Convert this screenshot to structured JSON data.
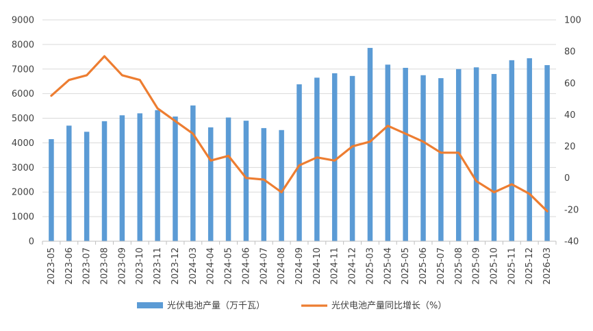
{
  "chart_data": {
    "type": "bar",
    "categories": [
      "2023-05",
      "2023-06",
      "2023-07",
      "2023-08",
      "2023-09",
      "2023-10",
      "2023-11",
      "2023-12",
      "2024-03",
      "2024-04",
      "2024-05",
      "2024-06",
      "2024-07",
      "2024-08",
      "2024-09",
      "2024-10",
      "2024-11",
      "2024-12",
      "2025-03",
      "2025-04",
      "2025-05",
      "2025-06",
      "2025-07",
      "2025-08",
      "2025-09",
      "2025-10",
      "2025-11",
      "2025-12",
      "2026-03"
    ],
    "series": [
      {
        "name": "光伏电池产量（万千瓦）",
        "type": "bar",
        "axis": "left",
        "color": "#5b9bd5",
        "values": [
          4150,
          4700,
          4450,
          4880,
          5120,
          5200,
          5330,
          5070,
          5520,
          4630,
          5030,
          4900,
          4600,
          4520,
          6380,
          6650,
          6830,
          6720,
          7860,
          7180,
          7050,
          6750,
          6630,
          7000,
          7070,
          6800,
          7360,
          7440,
          7160
        ]
      },
      {
        "name": "光伏电池产量同比增长（%）",
        "type": "line",
        "axis": "right",
        "color": "#ed7d31",
        "values": [
          52,
          62,
          65,
          77,
          65,
          62,
          44,
          36,
          28,
          11,
          14,
          0,
          -1,
          -9,
          8,
          13,
          11,
          20,
          23,
          33,
          28,
          23,
          16,
          16,
          -2,
          -9,
          -4,
          -10,
          -21
        ]
      }
    ],
    "y_left": {
      "min": 0,
      "max": 9000,
      "step": 1000,
      "ticks": [
        "0",
        "1000",
        "2000",
        "3000",
        "4000",
        "5000",
        "6000",
        "7000",
        "8000",
        "9000"
      ]
    },
    "y_right": {
      "min": -40,
      "max": 100,
      "step": 20,
      "ticks": [
        "-40",
        "-20",
        "0",
        "20",
        "40",
        "60",
        "80",
        "100"
      ]
    },
    "grid": true,
    "legend_position": "bottom",
    "legend": [
      {
        "label": "光伏电池产量（万千瓦）",
        "kind": "bar",
        "color": "#5b9bd5"
      },
      {
        "label": "光伏电池产量同比增长（%）",
        "kind": "line",
        "color": "#ed7d31"
      }
    ]
  }
}
